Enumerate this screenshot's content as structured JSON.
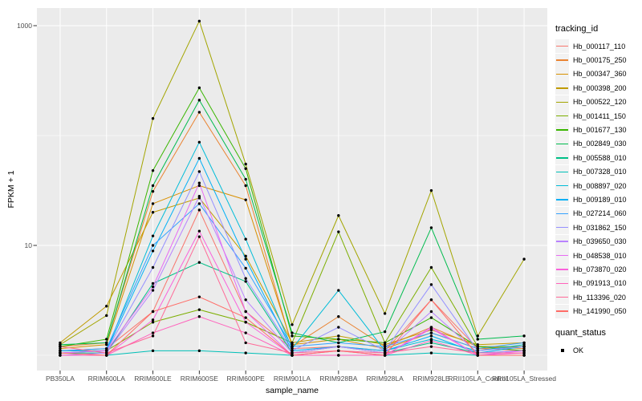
{
  "chart_data": {
    "type": "line",
    "title": "",
    "xlabel": "sample_name",
    "ylabel": "FPKM + 1",
    "y_scale": "log10",
    "y_ticks": [
      {
        "label": "1000",
        "value": 1000
      },
      {
        "label": "10",
        "value": 10
      }
    ],
    "y_minor_gridlines": [
      1,
      100
    ],
    "ylim_log": [
      0.63,
      1500
    ],
    "grid": true,
    "panel_bg": "#EBEBEB",
    "gridline_color": "#FFFFFF",
    "axis_text_color": "#4D4D4D",
    "tick_mark_color": "#333333",
    "point_color": "#000000",
    "categories": [
      "PB350LA",
      "RRIM600LA",
      "RRIM600LE",
      "RRIM600SE",
      "RRIM600PE",
      "RRIM901LA",
      "RRIM928BA",
      "RRIM928LA",
      "RRIM928LE",
      "RRII105LA_Control",
      "RRII105LA_Stressed"
    ],
    "legend": {
      "title": "tracking_id",
      "position": "right"
    },
    "quant_legend": {
      "title": "quant_status",
      "items": [
        {
          "label": "OK",
          "marker": "black-point"
        }
      ]
    },
    "series": [
      {
        "name": "Hb_000117_110",
        "color": "#F8766D",
        "values": [
          1.1,
          1.15,
          2.5,
          21,
          2.5,
          1.15,
          1.2,
          1.1,
          3.2,
          1.15,
          1.1
        ]
      },
      {
        "name": "Hb_000175_250",
        "color": "#EA8331",
        "values": [
          1.2,
          1.3,
          31,
          163,
          35,
          1.2,
          2.25,
          1.2,
          1.8,
          1.2,
          1.15
        ]
      },
      {
        "name": "Hb_000347_360",
        "color": "#D89000",
        "values": [
          1.15,
          1.25,
          24,
          35,
          26,
          1.25,
          1.4,
          1.15,
          1.6,
          1.15,
          1.2
        ]
      },
      {
        "name": "Hb_000398_200",
        "color": "#C09B00",
        "values": [
          1.3,
          2.8,
          20,
          27,
          8.0,
          1.3,
          1.5,
          1.25,
          1.7,
          1.25,
          1.3
        ]
      },
      {
        "name": "Hb_000522_120",
        "color": "#A3A500",
        "values": [
          1.25,
          2.3,
          143,
          1100,
          55,
          1.9,
          18.7,
          2.4,
          31.6,
          1.5,
          7.5
        ]
      },
      {
        "name": "Hb_001411_150",
        "color": "#7CAE00",
        "values": [
          1.1,
          1.1,
          2.0,
          2.6,
          2.0,
          1.3,
          13.3,
          1.3,
          6.3,
          1.2,
          1.2
        ]
      },
      {
        "name": "Hb_001677_130",
        "color": "#39B600",
        "values": [
          1.2,
          1.4,
          48,
          272,
          50,
          1.5,
          1.4,
          1.3,
          2.2,
          1.2,
          1.1
        ]
      },
      {
        "name": "Hb_002849_030",
        "color": "#00BB4E",
        "values": [
          1.25,
          1.3,
          35,
          210,
          40,
          1.6,
          1.3,
          1.64,
          14.5,
          1.4,
          1.5
        ]
      },
      {
        "name": "Hb_005588_010",
        "color": "#00C087",
        "values": [
          1.05,
          1.05,
          4.5,
          7.0,
          4.7,
          1.05,
          1.2,
          1.05,
          1.3,
          1.05,
          1.1
        ]
      },
      {
        "name": "Hb_007328_010",
        "color": "#00C0B8",
        "values": [
          1.0,
          1.0,
          1.1,
          1.1,
          1.05,
          1.0,
          1.0,
          1.0,
          1.05,
          1.0,
          1.0
        ]
      },
      {
        "name": "Hb_008897_020",
        "color": "#00BCD8",
        "values": [
          1.05,
          1.1,
          12.2,
          87,
          11.4,
          1.15,
          3.9,
          1.1,
          1.4,
          1.1,
          1.25
        ]
      },
      {
        "name": "Hb_009189_010",
        "color": "#00B0F6",
        "values": [
          1.1,
          1.1,
          8.9,
          62,
          7.5,
          1.1,
          1.2,
          1.1,
          1.5,
          1.05,
          1.2
        ]
      },
      {
        "name": "Hb_027214_060",
        "color": "#35A2FF",
        "values": [
          1.1,
          1.15,
          10,
          24,
          6.2,
          1.2,
          1.3,
          1.2,
          1.6,
          1.15,
          1.3
        ]
      },
      {
        "name": "Hb_031862_150",
        "color": "#9590FF",
        "values": [
          1.05,
          1.1,
          6.3,
          47,
          5.0,
          1.1,
          1.8,
          1.1,
          4.4,
          1.1,
          1.2
        ]
      },
      {
        "name": "Hb_039650_030",
        "color": "#B983FF",
        "values": [
          1.0,
          1.05,
          3.9,
          28,
          3.2,
          1.05,
          1.2,
          1.05,
          2.5,
          1.05,
          1.1
        ]
      },
      {
        "name": "Hb_048538_010",
        "color": "#E76BF3",
        "values": [
          1.05,
          1.1,
          4.2,
          37,
          2.5,
          1.0,
          1.1,
          1.0,
          1.8,
          1.0,
          1.1
        ]
      },
      {
        "name": "Hb_073870_020",
        "color": "#FA62DB",
        "values": [
          1.0,
          1.0,
          2.1,
          13.5,
          2.0,
          1.0,
          1.1,
          1.0,
          1.75,
          1.0,
          1.05
        ]
      },
      {
        "name": "Hb_091913_010",
        "color": "#FF62BC",
        "values": [
          1.0,
          1.0,
          1.6,
          2.25,
          1.6,
          1.0,
          1.0,
          1.0,
          1.36,
          1.0,
          1.0
        ]
      },
      {
        "name": "Hb_113396_020",
        "color": "#FF6A98",
        "values": [
          1.2,
          1.05,
          1.5,
          12,
          1.3,
          1.05,
          1.1,
          1.05,
          1.2,
          1.05,
          1.05
        ]
      },
      {
        "name": "Hb_141990_050",
        "color": "#FF6C67",
        "values": [
          1.05,
          1.0,
          2.5,
          3.4,
          2.2,
          1.0,
          1.1,
          1.0,
          3.2,
          1.0,
          1.0
        ]
      }
    ]
  }
}
